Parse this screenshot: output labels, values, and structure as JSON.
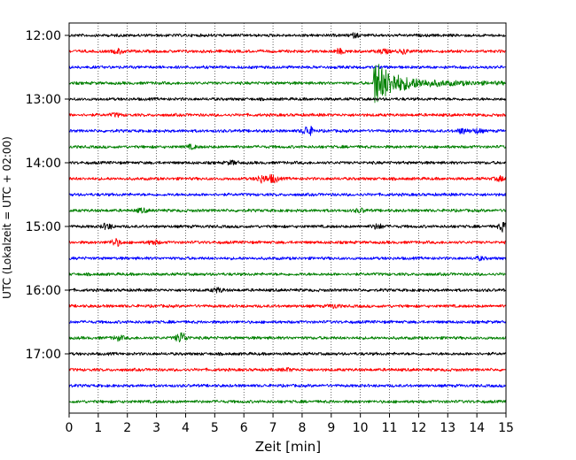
{
  "chart_data": {
    "type": "line",
    "title": "",
    "xlabel": "Zeit  [min]",
    "ylabel": "UTC (Lokalzeit = UTC + 02:00)",
    "xlim": [
      0,
      15
    ],
    "x_ticks": [
      "0",
      "1",
      "2",
      "3",
      "4",
      "5",
      "6",
      "7",
      "8",
      "9",
      "10",
      "11",
      "12",
      "13",
      "14",
      "15"
    ],
    "y_tick_labels": [
      "12:00",
      "13:00",
      "14:00",
      "15:00",
      "16:00",
      "17:00"
    ],
    "grid": "vertical dotted at each minute",
    "trace_interval_minutes": 15,
    "trace_colors_cycle": [
      "#000000",
      "#ff0000",
      "#0000ff",
      "#008000"
    ],
    "traces": [
      {
        "start": "12:00",
        "color": "#000000",
        "events": [
          {
            "minute": 9.8,
            "amp": 0.8
          }
        ]
      },
      {
        "start": "12:15",
        "color": "#ff0000",
        "events": [
          {
            "minute": 1.7,
            "amp": 1.0
          },
          {
            "minute": 9.3,
            "amp": 1.0
          },
          {
            "minute": 10.8,
            "amp": 1.0
          },
          {
            "minute": 11.5,
            "amp": 0.9
          }
        ]
      },
      {
        "start": "12:30",
        "color": "#0000ff",
        "events": []
      },
      {
        "start": "12:45",
        "color": "#008000",
        "events": [
          {
            "minute": 10.45,
            "amp": 10.0,
            "type": "earthquake"
          }
        ]
      },
      {
        "start": "13:00",
        "color": "#000000",
        "events": []
      },
      {
        "start": "13:15",
        "color": "#ff0000",
        "events": [
          {
            "minute": 1.6,
            "amp": 0.7
          }
        ]
      },
      {
        "start": "13:30",
        "color": "#0000ff",
        "events": [
          {
            "minute": 8.2,
            "amp": 2.4
          },
          {
            "minute": 13.5,
            "amp": 1.2
          },
          {
            "minute": 14.0,
            "amp": 1.0
          }
        ]
      },
      {
        "start": "13:45",
        "color": "#008000",
        "events": [
          {
            "minute": 4.2,
            "amp": 0.8
          }
        ]
      },
      {
        "start": "14:00",
        "color": "#000000",
        "events": [
          {
            "minute": 5.6,
            "amp": 0.8
          }
        ]
      },
      {
        "start": "14:15",
        "color": "#ff0000",
        "events": [
          {
            "minute": 6.6,
            "amp": 1.6
          },
          {
            "minute": 7.0,
            "amp": 1.8
          },
          {
            "minute": 14.8,
            "amp": 1.0
          }
        ]
      },
      {
        "start": "14:30",
        "color": "#0000ff",
        "events": []
      },
      {
        "start": "14:45",
        "color": "#008000",
        "events": [
          {
            "minute": 2.5,
            "amp": 0.9
          },
          {
            "minute": 10.0,
            "amp": 0.8
          }
        ]
      },
      {
        "start": "15:00",
        "color": "#000000",
        "events": [
          {
            "minute": 1.3,
            "amp": 1.3
          },
          {
            "minute": 10.6,
            "amp": 1.2
          },
          {
            "minute": 14.95,
            "amp": 2.4
          }
        ]
      },
      {
        "start": "15:15",
        "color": "#ff0000",
        "events": [
          {
            "minute": 1.6,
            "amp": 1.6
          },
          {
            "minute": 2.9,
            "amp": 1.0
          }
        ]
      },
      {
        "start": "15:30",
        "color": "#0000ff",
        "events": [
          {
            "minute": 14.1,
            "amp": 0.7
          }
        ]
      },
      {
        "start": "15:45",
        "color": "#008000",
        "events": []
      },
      {
        "start": "16:00",
        "color": "#000000",
        "events": [
          {
            "minute": 5.1,
            "amp": 1.0
          }
        ]
      },
      {
        "start": "16:15",
        "color": "#ff0000",
        "events": [
          {
            "minute": 9.1,
            "amp": 0.8
          }
        ]
      },
      {
        "start": "16:30",
        "color": "#0000ff",
        "events": []
      },
      {
        "start": "16:45",
        "color": "#008000",
        "events": [
          {
            "minute": 1.7,
            "amp": 1.0
          },
          {
            "minute": 3.85,
            "amp": 2.6
          }
        ]
      },
      {
        "start": "17:00",
        "color": "#000000",
        "events": []
      },
      {
        "start": "17:15",
        "color": "#ff0000",
        "events": [
          {
            "minute": 7.5,
            "amp": 0.6
          }
        ]
      },
      {
        "start": "17:30",
        "color": "#0000ff",
        "events": []
      },
      {
        "start": "17:45",
        "color": "#008000",
        "events": []
      }
    ]
  }
}
